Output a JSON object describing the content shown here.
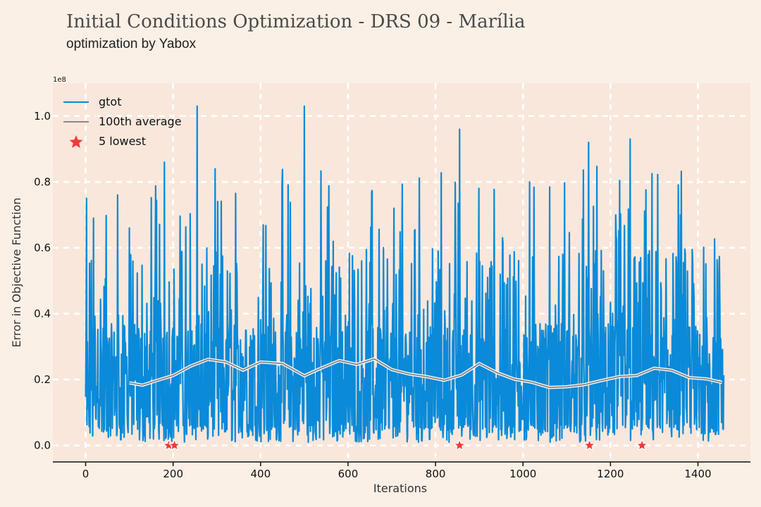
{
  "title": "Initial Conditions Optimization - DRS 09 - Marília",
  "subtitle": "optimization by Yabox",
  "colors": {
    "background": "#fbf0e6",
    "plot_background": "#f9e7dc",
    "series_main": "#0a8ad8",
    "series_average": "#8a8a8a",
    "markers": "#f03a3a",
    "grid": "#ffffff"
  },
  "chart_data": {
    "type": "line",
    "xlabel": "Iterations",
    "ylabel": "Error in Objective Function",
    "y_scale_label": "1e8",
    "xlim": [
      -75,
      1520
    ],
    "ylim": [
      -0.05,
      1.1
    ],
    "x_ticks": [
      0,
      200,
      400,
      600,
      800,
      1000,
      1200,
      1400
    ],
    "y_ticks": [
      0.0,
      0.2,
      0.4,
      0.6,
      0.8,
      1.0
    ],
    "y_tick_labels": [
      "0.0",
      "0.2",
      "0.4",
      "0.6",
      "0.8",
      "1.0"
    ],
    "grid": true,
    "legend_position": "upper-left",
    "n_iterations": 1460,
    "series": [
      {
        "name": "gtot",
        "style": "line",
        "peaks": [
          {
            "x": 2,
            "y": 0.75
          },
          {
            "x": 100,
            "y": 0.66
          },
          {
            "x": 180,
            "y": 0.86
          },
          {
            "x": 255,
            "y": 1.03
          },
          {
            "x": 500,
            "y": 1.03
          },
          {
            "x": 855,
            "y": 0.96
          },
          {
            "x": 1150,
            "y": 0.92
          },
          {
            "x": 1245,
            "y": 0.93
          },
          {
            "x": 1360,
            "y": 0.7
          },
          {
            "x": 1450,
            "y": 0.42
          }
        ]
      },
      {
        "name": "100th average",
        "style": "line",
        "x": [
          100,
          130,
          160,
          200,
          240,
          280,
          320,
          360,
          400,
          450,
          500,
          540,
          580,
          620,
          660,
          700,
          740,
          780,
          820,
          860,
          900,
          940,
          980,
          1020,
          1060,
          1100,
          1140,
          1180,
          1220,
          1260,
          1300,
          1340,
          1380,
          1420,
          1455
        ],
        "y": [
          0.19,
          0.18,
          0.2,
          0.21,
          0.24,
          0.265,
          0.25,
          0.23,
          0.255,
          0.245,
          0.215,
          0.235,
          0.255,
          0.25,
          0.26,
          0.23,
          0.22,
          0.205,
          0.2,
          0.215,
          0.245,
          0.225,
          0.2,
          0.19,
          0.18,
          0.175,
          0.185,
          0.2,
          0.205,
          0.215,
          0.235,
          0.225,
          0.21,
          0.2,
          0.19
        ]
      },
      {
        "name": "5 lowest",
        "style": "star",
        "x": [
          190,
          203,
          855,
          1152,
          1272
        ],
        "y": [
          0.0,
          0.0,
          0.0,
          0.0,
          0.0
        ]
      }
    ]
  }
}
